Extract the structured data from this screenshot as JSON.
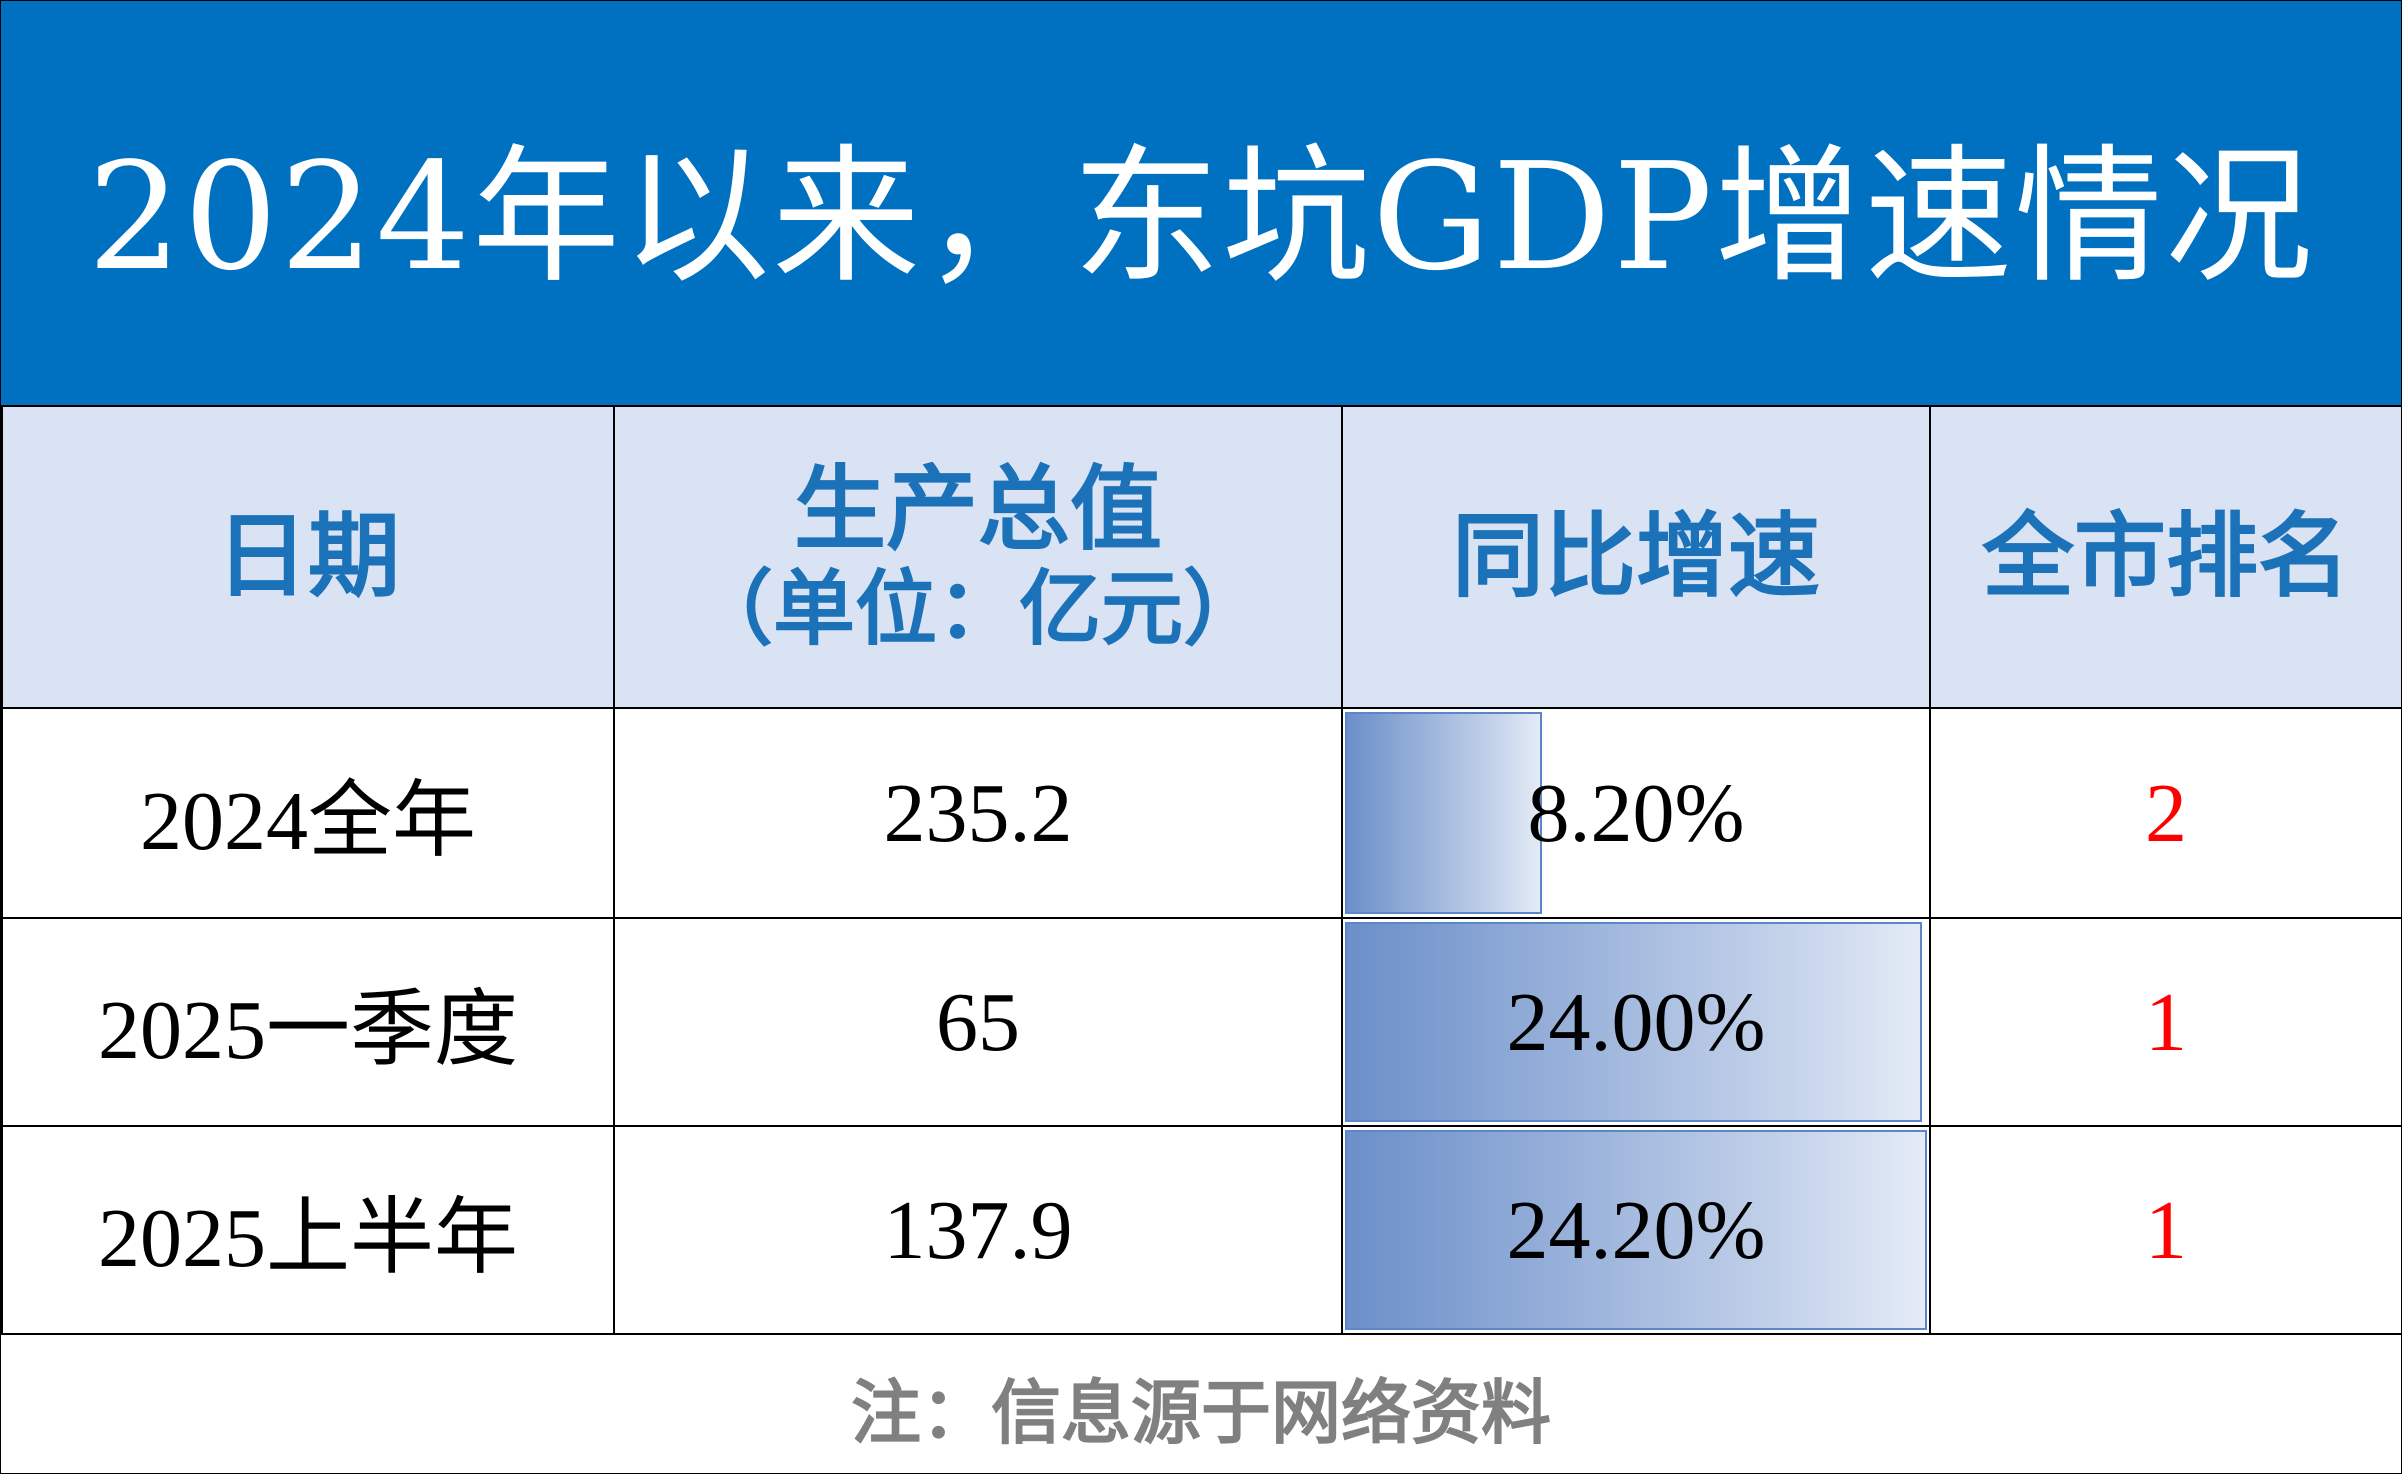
{
  "chart_data": {
    "type": "table",
    "title": "2024年以来，东坑GDP增速情况",
    "columns": {
      "date": "日期",
      "gdp": "生产总值",
      "gdp_unit": "（单位：亿元）",
      "growth": "同比增速",
      "rank": "全市排名"
    },
    "rows": [
      {
        "date": "2024全年",
        "gdp": "235.2",
        "growth": "8.20%",
        "growth_value": 8.2,
        "rank": "2"
      },
      {
        "date": "2025一季度",
        "gdp": "65",
        "growth": "24.00%",
        "growth_value": 24.0,
        "rank": "1"
      },
      {
        "date": "2025上半年",
        "gdp": "137.9",
        "growth": "24.20%",
        "growth_value": 24.2,
        "rank": "1"
      }
    ],
    "growth_bar_max": 24.2,
    "colors": {
      "title_background": "#0070c0",
      "header_background": "#dae3f3",
      "header_text": "#1b72b8",
      "rank_text": "#ff0000",
      "bar_fill": "#6b8fc9",
      "footnote_text": "#808080"
    }
  },
  "footnote": "注：信息源于网络资料"
}
